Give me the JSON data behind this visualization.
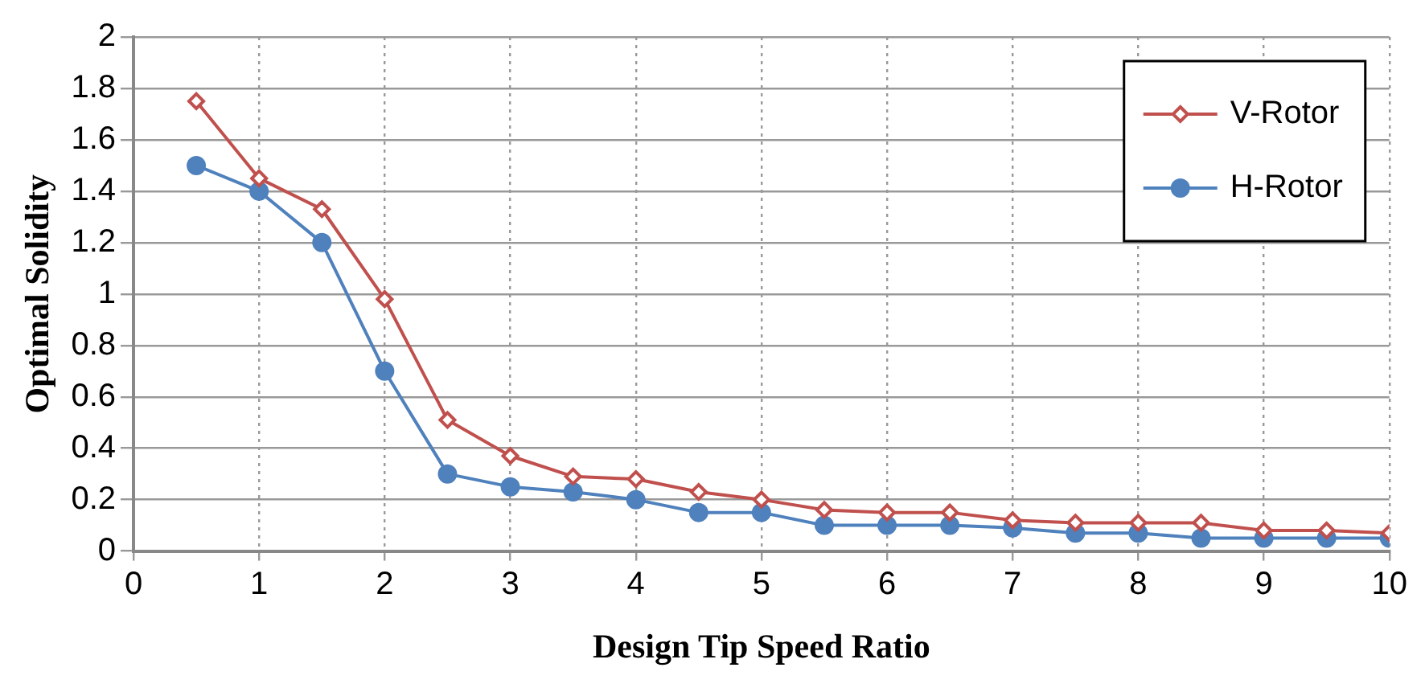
{
  "chart_data": {
    "type": "line",
    "xlabel": "Design Tip Speed Ratio",
    "ylabel": "Optimal Solidity",
    "x": [
      0.5,
      1,
      1.5,
      2,
      2.5,
      3,
      3.5,
      4,
      4.5,
      5,
      5.5,
      6,
      6.5,
      7,
      7.5,
      8,
      8.5,
      9,
      9.5,
      10
    ],
    "series": [
      {
        "name": "V-Rotor",
        "color": "#c0504d",
        "marker": "diamond",
        "values": [
          1.75,
          1.45,
          1.33,
          0.98,
          0.51,
          0.37,
          0.29,
          0.28,
          0.23,
          0.2,
          0.16,
          0.15,
          0.15,
          0.12,
          0.11,
          0.11,
          0.11,
          0.08,
          0.08,
          0.07
        ]
      },
      {
        "name": "H-Rotor",
        "color": "#4f81bd",
        "marker": "circle",
        "values": [
          1.5,
          1.4,
          1.2,
          0.7,
          0.3,
          0.25,
          0.23,
          0.2,
          0.15,
          0.15,
          0.1,
          0.1,
          0.1,
          0.09,
          0.07,
          0.07,
          0.05,
          0.05,
          0.05,
          0.05
        ]
      }
    ],
    "xlim": [
      0,
      10
    ],
    "xticks": [
      0,
      1,
      2,
      3,
      4,
      5,
      6,
      7,
      8,
      9,
      10
    ],
    "ylim": [
      0,
      2
    ],
    "yticks": [
      0,
      0.2,
      0.4,
      0.6,
      0.8,
      1,
      1.2,
      1.4,
      1.6,
      1.8,
      2
    ],
    "grid": true,
    "legend": "top right",
    "line_style": "solid"
  }
}
